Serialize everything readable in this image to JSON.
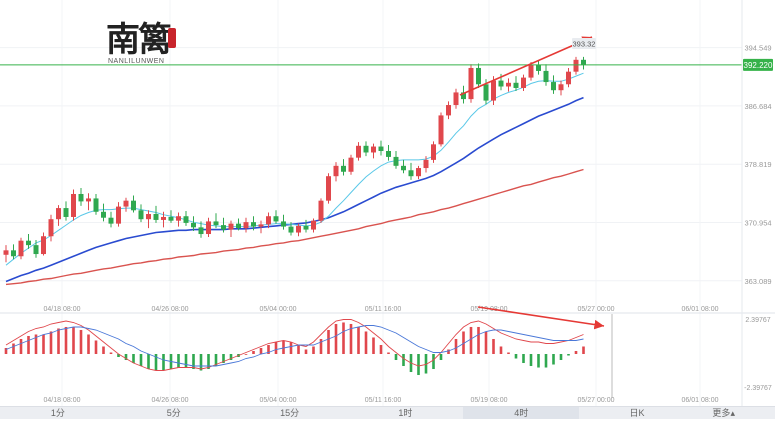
{
  "logo": {
    "text_cn": "南篱",
    "text_en": "NANLILUNWEN"
  },
  "price_labels": {
    "current": "392.220",
    "last_high": "393.32"
  },
  "y_axis_ticks": [
    "394.549",
    "386.684",
    "378.819",
    "370.954",
    "363.089"
  ],
  "x_axis_ticks": [
    "04/18 08:00",
    "04/26 08:00",
    "05/04 00:00",
    "05/11 16:00",
    "05/19 08:00",
    "05/27 00:00",
    "06/01 08:00"
  ],
  "macd_axis": {
    "top": "2.39767",
    "bottom": "-2.39767"
  },
  "colors": {
    "up": "#e0474c",
    "down": "#2fa84f",
    "ma_fast": "#5ac8e8",
    "ma_mid": "#2a4bd0",
    "ma_slow": "#d9534f",
    "price_line": "#36b24a",
    "arrow": "#e53935"
  },
  "timeframe_tabs": [
    "1分",
    "5分",
    "15分",
    "1时",
    "4时",
    "日K",
    "更多"
  ],
  "active_tab": "4时",
  "chart_data": {
    "type": "candlestick",
    "interval": "4h",
    "ylim": [
      360.5,
      398.0
    ],
    "candles": [
      [
        366.6,
        367.9,
        365.6,
        367.2
      ],
      [
        367.2,
        368.0,
        366.0,
        366.4
      ],
      [
        366.4,
        368.9,
        366.0,
        368.5
      ],
      [
        368.5,
        369.4,
        367.4,
        367.9
      ],
      [
        367.9,
        368.6,
        366.2,
        366.7
      ],
      [
        366.7,
        369.6,
        366.5,
        369.1
      ],
      [
        369.1,
        372.0,
        368.4,
        371.4
      ],
      [
        371.4,
        373.3,
        370.5,
        372.9
      ],
      [
        372.9,
        373.8,
        371.2,
        371.7
      ],
      [
        371.7,
        375.4,
        371.2,
        374.8
      ],
      [
        374.8,
        375.6,
        373.2,
        373.8
      ],
      [
        373.8,
        374.9,
        372.6,
        374.2
      ],
      [
        374.2,
        374.8,
        372.0,
        372.4
      ],
      [
        372.4,
        373.5,
        371.1,
        371.6
      ],
      [
        371.6,
        372.4,
        370.3,
        370.8
      ],
      [
        370.8,
        373.7,
        370.4,
        373.1
      ],
      [
        373.1,
        374.3,
        372.4,
        373.9
      ],
      [
        373.9,
        374.6,
        372.3,
        372.6
      ],
      [
        372.6,
        373.4,
        371.0,
        371.4
      ],
      [
        371.4,
        372.6,
        370.2,
        372.1
      ],
      [
        372.1,
        373.2,
        370.9,
        371.3
      ],
      [
        371.3,
        372.4,
        370.3,
        371.7
      ],
      [
        371.7,
        372.6,
        370.9,
        371.2
      ],
      [
        371.2,
        372.3,
        370.4,
        371.8
      ],
      [
        371.8,
        372.5,
        370.5,
        370.9
      ],
      [
        370.9,
        371.8,
        369.8,
        370.3
      ],
      [
        370.3,
        371.1,
        368.9,
        369.4
      ],
      [
        369.4,
        371.6,
        369.0,
        371.1
      ],
      [
        371.1,
        372.2,
        370.2,
        370.6
      ],
      [
        370.6,
        371.6,
        369.6,
        370.0
      ],
      [
        370.0,
        371.2,
        369.0,
        370.8
      ],
      [
        370.8,
        371.5,
        369.9,
        370.2
      ],
      [
        370.2,
        371.6,
        369.6,
        371.0
      ],
      [
        371.0,
        371.8,
        369.9,
        370.4
      ],
      [
        370.4,
        371.2,
        369.5,
        370.7
      ],
      [
        370.7,
        372.3,
        370.2,
        371.8
      ],
      [
        371.8,
        372.6,
        370.8,
        371.1
      ],
      [
        371.1,
        372.0,
        370.0,
        370.4
      ],
      [
        370.4,
        371.0,
        369.2,
        369.6
      ],
      [
        369.6,
        370.8,
        369.1,
        370.5
      ],
      [
        370.5,
        371.3,
        369.6,
        370.0
      ],
      [
        370.0,
        371.5,
        369.6,
        371.2
      ],
      [
        371.2,
        374.2,
        370.9,
        373.9
      ],
      [
        373.9,
        377.6,
        373.5,
        377.2
      ],
      [
        377.2,
        379.1,
        376.5,
        378.6
      ],
      [
        378.6,
        379.5,
        377.3,
        377.8
      ],
      [
        377.8,
        380.1,
        377.4,
        379.7
      ],
      [
        379.7,
        381.8,
        379.3,
        381.3
      ],
      [
        381.3,
        381.9,
        379.9,
        380.4
      ],
      [
        380.4,
        381.6,
        379.6,
        381.2
      ],
      [
        381.2,
        382.0,
        380.0,
        380.6
      ],
      [
        380.6,
        381.4,
        379.3,
        379.8
      ],
      [
        379.8,
        380.6,
        378.2,
        378.6
      ],
      [
        378.6,
        379.4,
        377.6,
        378.0
      ],
      [
        378.0,
        379.0,
        376.7,
        377.2
      ],
      [
        377.2,
        378.6,
        376.8,
        378.3
      ],
      [
        378.3,
        379.9,
        377.7,
        379.4
      ],
      [
        379.4,
        381.9,
        379.0,
        381.5
      ],
      [
        381.5,
        385.8,
        381.2,
        385.4
      ],
      [
        385.4,
        387.3,
        384.9,
        386.8
      ],
      [
        386.8,
        389.0,
        386.3,
        388.5
      ],
      [
        388.5,
        389.4,
        387.0,
        387.6
      ],
      [
        387.6,
        392.3,
        387.1,
        391.8
      ],
      [
        391.8,
        392.4,
        389.1,
        389.6
      ],
      [
        389.6,
        390.3,
        386.9,
        387.4
      ],
      [
        387.4,
        390.7,
        386.8,
        390.1
      ],
      [
        390.1,
        391.0,
        388.8,
        389.3
      ],
      [
        389.3,
        390.4,
        388.6,
        389.8
      ],
      [
        389.8,
        390.7,
        388.7,
        389.1
      ],
      [
        389.1,
        390.9,
        388.7,
        390.5
      ],
      [
        390.5,
        392.6,
        390.1,
        392.2
      ],
      [
        392.2,
        392.8,
        390.9,
        391.4
      ],
      [
        391.4,
        392.3,
        389.4,
        389.9
      ],
      [
        389.9,
        390.8,
        388.3,
        388.8
      ],
      [
        388.8,
        390.1,
        388.1,
        389.6
      ],
      [
        389.6,
        391.8,
        389.2,
        391.3
      ],
      [
        391.3,
        393.3,
        390.9,
        392.9
      ],
      [
        392.9,
        393.3,
        391.6,
        392.2
      ]
    ],
    "ma_fast": [
      365.2,
      366.0,
      366.8,
      367.5,
      368.2,
      368.6,
      369.2,
      369.9,
      370.6,
      371.3,
      371.9,
      372.3,
      372.6,
      372.7,
      372.7,
      372.8,
      372.9,
      372.9,
      372.7,
      372.5,
      372.3,
      372.0,
      371.8,
      371.6,
      371.3,
      371.0,
      370.8,
      370.6,
      370.5,
      370.4,
      370.4,
      370.4,
      370.4,
      370.5,
      370.6,
      370.7,
      370.8,
      370.8,
      370.7,
      370.6,
      370.5,
      370.6,
      371.0,
      371.8,
      372.9,
      373.9,
      375.0,
      376.1,
      377.1,
      377.9,
      378.6,
      379.1,
      379.3,
      379.4,
      379.4,
      379.4,
      379.5,
      379.9,
      380.7,
      381.8,
      383.0,
      384.0,
      385.3,
      386.3,
      386.9,
      387.6,
      388.1,
      388.5,
      388.8,
      389.2,
      389.7,
      390.0,
      390.1,
      390.0,
      390.0,
      390.3,
      390.7,
      391.1
    ],
    "ma_mid": [
      363.0,
      363.4,
      363.8,
      364.1,
      364.5,
      364.8,
      365.2,
      365.6,
      366.0,
      366.4,
      366.8,
      367.2,
      367.6,
      367.9,
      368.2,
      368.5,
      368.8,
      369.0,
      369.2,
      369.4,
      369.6,
      369.7,
      369.8,
      369.9,
      369.9,
      370.0,
      370.0,
      370.0,
      370.0,
      370.0,
      370.1,
      370.1,
      370.1,
      370.2,
      370.3,
      370.4,
      370.5,
      370.6,
      370.7,
      370.8,
      370.9,
      371.1,
      371.3,
      371.6,
      372.0,
      372.4,
      372.9,
      373.4,
      373.9,
      374.4,
      374.9,
      375.3,
      375.7,
      376.0,
      376.3,
      376.6,
      376.9,
      377.3,
      377.8,
      378.4,
      379.0,
      379.6,
      380.3,
      381.0,
      381.6,
      382.2,
      382.8,
      383.3,
      383.8,
      384.3,
      384.8,
      385.3,
      385.7,
      386.1,
      386.5,
      386.9,
      387.4,
      387.8
    ],
    "ma_slow": [
      362.6,
      362.7,
      362.8,
      363.0,
      363.1,
      363.3,
      363.4,
      363.6,
      363.8,
      364.0,
      364.1,
      364.3,
      364.5,
      364.7,
      364.8,
      365.0,
      365.2,
      365.4,
      365.5,
      365.7,
      365.8,
      366.0,
      366.1,
      366.3,
      366.4,
      366.5,
      366.7,
      366.8,
      366.9,
      367.1,
      367.2,
      367.3,
      367.5,
      367.6,
      367.8,
      367.9,
      368.1,
      368.2,
      368.4,
      368.5,
      368.7,
      368.9,
      369.1,
      369.3,
      369.5,
      369.7,
      369.9,
      370.1,
      370.4,
      370.6,
      370.8,
      371.1,
      371.3,
      371.5,
      371.7,
      372.0,
      372.2,
      372.4,
      372.7,
      372.9,
      373.2,
      373.5,
      373.8,
      374.1,
      374.4,
      374.7,
      375.0,
      375.3,
      375.6,
      375.9,
      376.1,
      376.4,
      376.7,
      377.0,
      377.2,
      377.5,
      377.8,
      378.1
    ],
    "macd": {
      "ylim": [
        -2.39767,
        2.39767
      ],
      "hist": [
        0.4,
        0.7,
        1.0,
        1.2,
        1.3,
        1.3,
        1.5,
        1.7,
        1.8,
        1.8,
        1.6,
        1.3,
        0.9,
        0.5,
        0.1,
        -0.2,
        -0.4,
        -0.6,
        -0.8,
        -1.0,
        -1.1,
        -1.1,
        -1.0,
        -0.9,
        -0.9,
        -1.0,
        -1.1,
        -1.0,
        -0.8,
        -0.6,
        -0.4,
        -0.2,
        0.0,
        0.2,
        0.4,
        0.6,
        0.8,
        0.9,
        0.8,
        0.6,
        0.3,
        0.5,
        1.0,
        1.6,
        2.0,
        2.1,
        2.0,
        1.8,
        1.5,
        1.1,
        0.6,
        0.1,
        -0.4,
        -0.8,
        -1.2,
        -1.4,
        -1.3,
        -1.0,
        -0.4,
        0.3,
        1.0,
        1.5,
        1.8,
        1.8,
        1.5,
        1.0,
        0.5,
        0.1,
        -0.3,
        -0.6,
        -0.8,
        -0.9,
        -0.9,
        -0.7,
        -0.4,
        -0.1,
        0.2,
        0.5
      ],
      "dif": [
        0.6,
        0.9,
        1.2,
        1.5,
        1.7,
        1.8,
        2.0,
        2.1,
        2.2,
        2.1,
        1.9,
        1.6,
        1.2,
        0.8,
        0.4,
        0.0,
        -0.3,
        -0.6,
        -0.8,
        -1.0,
        -1.1,
        -1.1,
        -1.0,
        -0.9,
        -0.9,
        -0.9,
        -1.0,
        -0.9,
        -0.7,
        -0.5,
        -0.3,
        -0.1,
        0.1,
        0.3,
        0.5,
        0.7,
        0.8,
        0.9,
        0.8,
        0.6,
        0.5,
        0.8,
        1.3,
        1.8,
        2.2,
        2.3,
        2.3,
        2.1,
        1.8,
        1.4,
        1.0,
        0.5,
        0.1,
        -0.3,
        -0.6,
        -0.8,
        -0.7,
        -0.4,
        0.1,
        0.7,
        1.3,
        1.8,
        2.1,
        2.2,
        2.0,
        1.7,
        1.4,
        1.2,
        1.0,
        0.9,
        0.8,
        0.8,
        0.7,
        0.7,
        0.8,
        0.9,
        1.1,
        1.3
      ],
      "dea": [
        0.3,
        0.5,
        0.7,
        0.9,
        1.1,
        1.3,
        1.4,
        1.6,
        1.7,
        1.8,
        1.8,
        1.7,
        1.6,
        1.4,
        1.2,
        1.0,
        0.7,
        0.5,
        0.2,
        0.0,
        -0.2,
        -0.4,
        -0.5,
        -0.6,
        -0.7,
        -0.8,
        -0.8,
        -0.8,
        -0.8,
        -0.7,
        -0.6,
        -0.5,
        -0.3,
        -0.2,
        0.0,
        0.1,
        0.3,
        0.4,
        0.5,
        0.6,
        0.6,
        0.6,
        0.8,
        1.0,
        1.2,
        1.5,
        1.7,
        1.8,
        1.9,
        1.9,
        1.8,
        1.6,
        1.4,
        1.1,
        0.8,
        0.5,
        0.3,
        0.1,
        0.1,
        0.2,
        0.4,
        0.7,
        1.0,
        1.3,
        1.5,
        1.6,
        1.6,
        1.5,
        1.4,
        1.3,
        1.2,
        1.1,
        1.0,
        0.9,
        0.9,
        0.9,
        0.9,
        1.0
      ]
    }
  }
}
